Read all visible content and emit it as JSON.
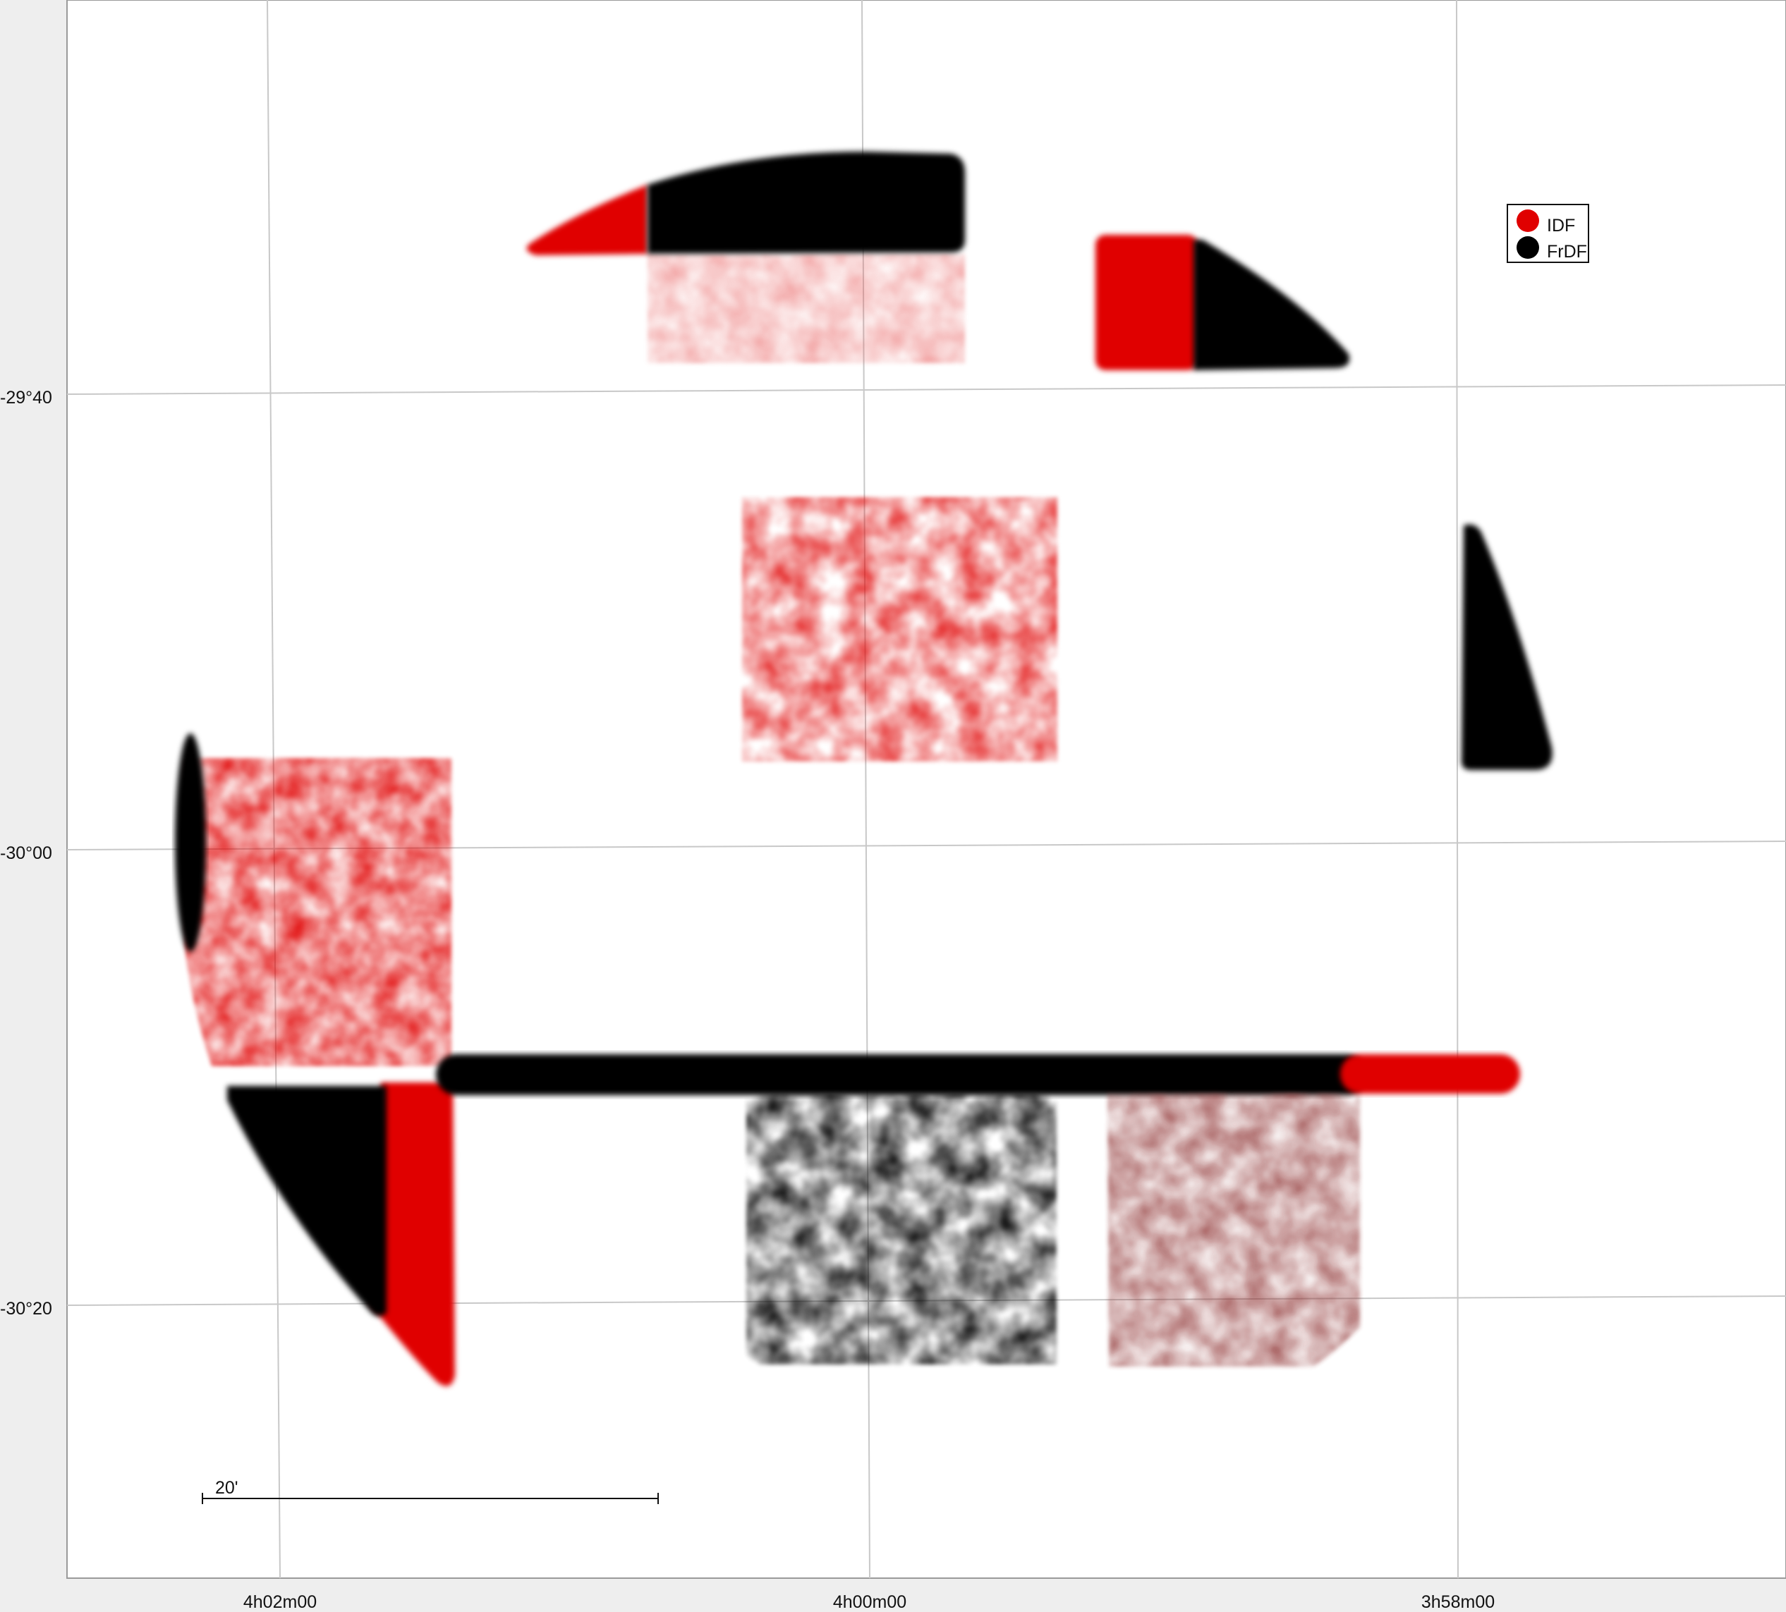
{
  "plot": {
    "axes": {
      "ra_tick_labels": [
        "4h02m00",
        "4h00m00",
        "3h58m00"
      ],
      "dec_tick_labels": [
        "-29°40",
        "-30°00",
        "-30°20"
      ]
    },
    "legend": {
      "placement": "top-right",
      "entries": [
        {
          "label": "IDF",
          "color": "#e00000"
        },
        {
          "label": "FrDF",
          "color": "#000000"
        }
      ]
    },
    "scale_bar": {
      "label": "20'"
    },
    "colors": {
      "background": "#ffffff",
      "frame": "#eeeeee",
      "grid": "#c8c8c8",
      "IDF": "#e00000",
      "FrDF": "#000000",
      "IDF_faint": "#e85a5a",
      "maroon_blend": "#8a2a2a"
    }
  }
}
